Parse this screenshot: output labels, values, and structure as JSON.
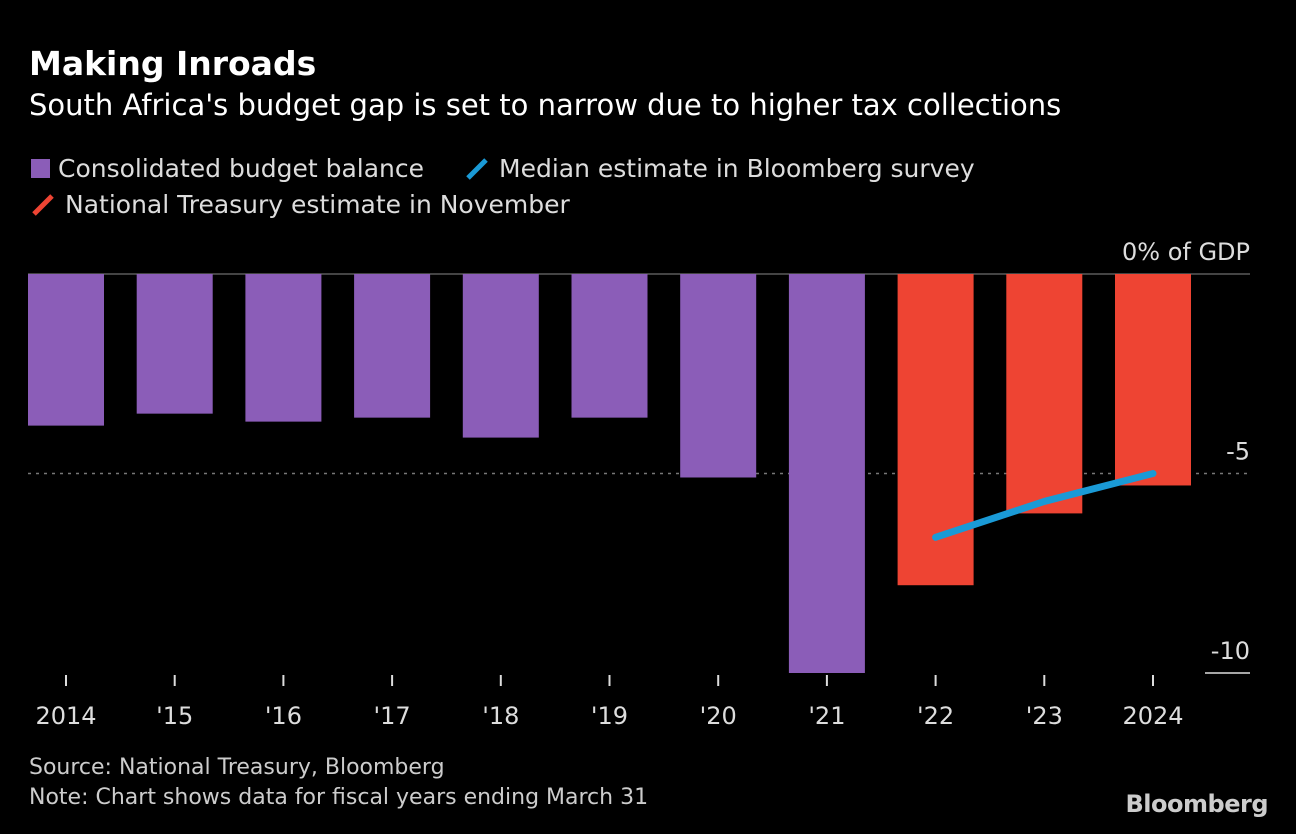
{
  "title": "Making Inroads",
  "subtitle": "South Africa's budget gap is set to narrow due to higher tax collections",
  "legend": [
    {
      "label": "Consolidated budget balance",
      "color": "#8b5db8",
      "shape": "box"
    },
    {
      "label": "Median estimate in Bloomberg survey",
      "color": "#1a9ad6",
      "shape": "line"
    },
    {
      "label": "National Treasury estimate in November",
      "color": "#ee4433",
      "shape": "line"
    }
  ],
  "source": "Source: National Treasury, Bloomberg",
  "note": "Note: Chart shows data for fiscal years ending March 31",
  "logo": "Bloomberg",
  "chart_data": {
    "type": "bar",
    "title": "Making Inroads",
    "ylabel": "% of GDP",
    "ylim": [
      -10,
      0
    ],
    "yticks": [
      {
        "value": 0,
        "label": "0% of GDP"
      },
      {
        "value": -5,
        "label": "-5"
      },
      {
        "value": -10,
        "label": "-10"
      }
    ],
    "categories": [
      "2014",
      "'15",
      "'16",
      "'17",
      "'18",
      "'19",
      "'20",
      "'21",
      "'22",
      "'23",
      "2024"
    ],
    "series": [
      {
        "name": "Consolidated budget balance",
        "type": "bar",
        "color": "#8b5db8",
        "values": [
          -3.8,
          -3.5,
          -3.7,
          -3.6,
          -4.1,
          -3.6,
          -5.1,
          -10.0,
          null,
          null,
          null
        ]
      },
      {
        "name": "National Treasury estimate in November",
        "type": "bar",
        "color": "#ee4433",
        "values": [
          null,
          null,
          null,
          null,
          null,
          null,
          null,
          null,
          -7.8,
          -6.0,
          -5.3
        ]
      },
      {
        "name": "Median estimate in Bloomberg survey",
        "type": "line",
        "color": "#1a9ad6",
        "values": [
          null,
          null,
          null,
          null,
          null,
          null,
          null,
          null,
          -6.6,
          -5.7,
          -5.0
        ]
      }
    ],
    "grid": "dotted line at -5",
    "legend_position": "top-left"
  }
}
